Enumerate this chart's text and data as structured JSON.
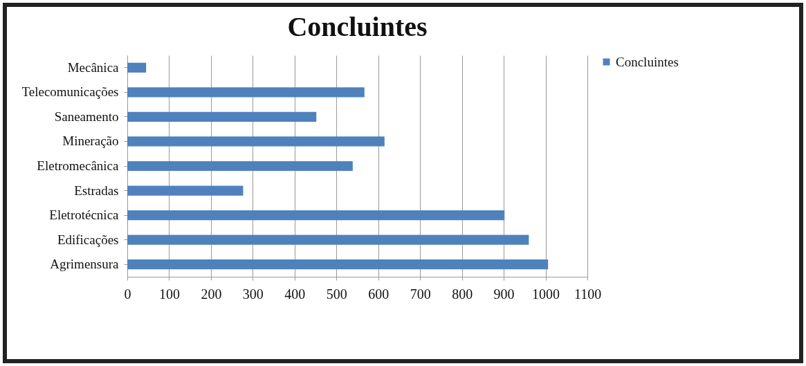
{
  "chart_data": {
    "type": "bar",
    "orientation": "horizontal",
    "title": "Concluintes",
    "categories": [
      "Mecânica",
      "Telecomunicações",
      "Saneamento",
      "Mineração",
      "Eletromecânica",
      "Estradas",
      "Eletrotécnica",
      "Edificações",
      "Agrimensura"
    ],
    "series": [
      {
        "name": "Concluintes",
        "color": "#4f81bd",
        "values": [
          45,
          567,
          452,
          615,
          539,
          277,
          902,
          960,
          1006
        ]
      }
    ],
    "xlim": [
      0,
      1100
    ],
    "xticks": [
      0,
      100,
      200,
      300,
      400,
      500,
      600,
      700,
      800,
      900,
      1000,
      1100
    ],
    "grid": "x",
    "legend": "right"
  }
}
